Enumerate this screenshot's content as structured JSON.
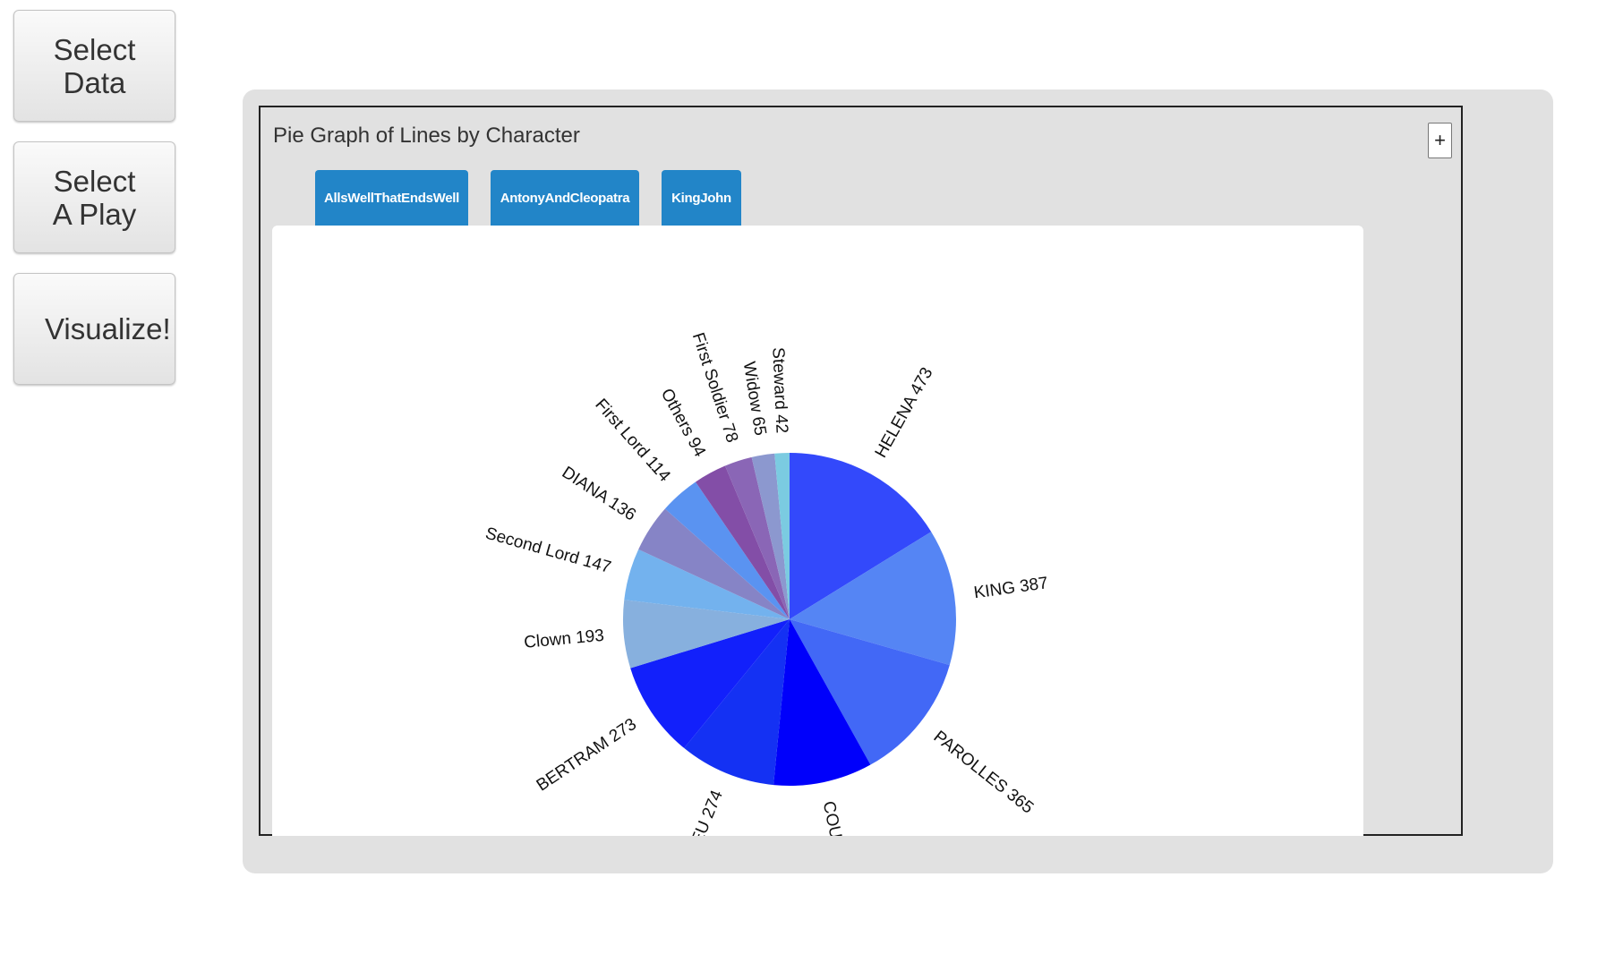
{
  "sidebar": {
    "select_data": [
      "Select",
      "Data"
    ],
    "select_play": [
      "Select",
      "A Play"
    ],
    "visualize": "Visualize!"
  },
  "widget": {
    "title": "Pie Graph of Lines by Character",
    "expand_label": "+",
    "tabs": [
      "AllsWellThatEndsWell",
      "AntonyAndCleopatra",
      "KingJohn"
    ]
  },
  "chart_data": {
    "type": "pie",
    "title": "Pie Graph of Lines by Character",
    "categories": [
      "HELENA",
      "KING",
      "PAROLLES",
      "COUNTESS",
      "LAFEU",
      "BERTRAM",
      "Clown",
      "Second Lord",
      "DIANA",
      "First Lord",
      "Others",
      "First Soldier",
      "Widow",
      "Steward"
    ],
    "values": [
      473,
      387,
      365,
      281,
      274,
      273,
      193,
      147,
      136,
      114,
      94,
      78,
      65,
      42
    ],
    "colors": [
      "#3349fb",
      "#5585f4",
      "#4268f6",
      "#0000fb",
      "#1431f3",
      "#1220fb",
      "#87b0de",
      "#73b2ee",
      "#8684c6",
      "#5a93f1",
      "#834ea7",
      "#8a66b6",
      "#8c98cf",
      "#7bcbe1"
    ]
  }
}
